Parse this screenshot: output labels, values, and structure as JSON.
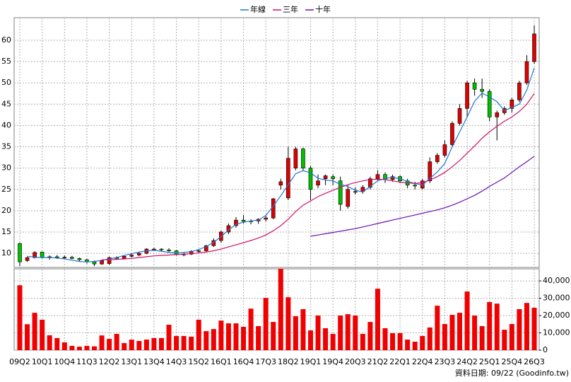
{
  "chart_data": [
    {
      "type": "candlestick",
      "categories": [
        "09Q2",
        null,
        null,
        "10Q1",
        null,
        null,
        "10Q4",
        null,
        null,
        "11Q3",
        null,
        null,
        "12Q2",
        null,
        null,
        "13Q1",
        null,
        null,
        "13Q4",
        null,
        null,
        "14Q3",
        null,
        null,
        "15Q2",
        null,
        null,
        "16Q1",
        null,
        null,
        "16Q4",
        null,
        null,
        "17Q3",
        null,
        null,
        "18Q2",
        null,
        null,
        "19Q1",
        null,
        null,
        "19Q4",
        null,
        null,
        "20Q3",
        null,
        null,
        "21Q2",
        null,
        null,
        "22Q1",
        null,
        null,
        "22Q4",
        null,
        null,
        "23Q3",
        null,
        null,
        "24Q2",
        null,
        null,
        "25Q1",
        null,
        null,
        "25Q4",
        null,
        null,
        "26Q3"
      ],
      "open": [
        12.3,
        8.3,
        9,
        10.3,
        9,
        9.2,
        9,
        9.1,
        8.8,
        8.5,
        8,
        7.5,
        7.6,
        9,
        8.8,
        9.3,
        9.6,
        10,
        11,
        11,
        10.8,
        10.6,
        9.7,
        9.8,
        10.5,
        10.6,
        11.8,
        13,
        15,
        16.5,
        17.8,
        17.5,
        17.6,
        18,
        18.3,
        26,
        23,
        30,
        34.5,
        30,
        26,
        27.5,
        28,
        27,
        21,
        24.5,
        24.5,
        25.5,
        27.5,
        28.5,
        27.3,
        28,
        27,
        26,
        25.3,
        27,
        31.5,
        33,
        35.5,
        40.5,
        44,
        50,
        48.5,
        48,
        42,
        43,
        44,
        46,
        50,
        55
      ],
      "high": [
        12.5,
        9.2,
        10.5,
        10.4,
        9.5,
        9.6,
        9.5,
        9.4,
        9,
        8.7,
        8.3,
        8.5,
        9.2,
        9.3,
        9.5,
        10,
        10.3,
        11.2,
        11.3,
        11.2,
        11.2,
        10.8,
        10.2,
        10.7,
        11,
        12,
        13.5,
        15.3,
        17,
        18.5,
        19,
        18,
        18.2,
        19,
        23,
        27.5,
        35,
        35,
        34.8,
        30.5,
        28.5,
        28.5,
        28.5,
        28,
        26,
        25.5,
        26,
        28,
        29.5,
        29,
        28.5,
        28.3,
        27.5,
        26.8,
        27.5,
        32.5,
        33.5,
        36.5,
        41,
        45,
        50.5,
        51,
        51,
        48.5,
        43.5,
        44.5,
        46.5,
        50.5,
        56.5,
        63.5
      ],
      "low": [
        7,
        8,
        8.8,
        8.8,
        8.5,
        8.7,
        8.6,
        8.6,
        8.2,
        7.6,
        7,
        7.3,
        7.3,
        8.5,
        8.6,
        9,
        9.3,
        9.8,
        10.6,
        10.4,
        10.3,
        9.5,
        9.3,
        9.6,
        10,
        10.2,
        11.5,
        12.5,
        14.5,
        16,
        17,
        16.8,
        16.9,
        17.5,
        18,
        25,
        22.5,
        29.5,
        29.5,
        22.5,
        25.3,
        26,
        26,
        20,
        20.5,
        23.8,
        24,
        25,
        27,
        26.5,
        26.8,
        26.5,
        25.3,
        25,
        25,
        26.5,
        31,
        32.5,
        35,
        40,
        42,
        47,
        46.5,
        41,
        36.5,
        42.5,
        43,
        45.5,
        49.5,
        54.5
      ],
      "close": [
        8,
        9,
        10.2,
        9,
        9.2,
        9,
        9.1,
        8.8,
        8.5,
        8,
        7.5,
        8.3,
        9,
        8.8,
        9.3,
        9.6,
        10,
        11,
        11,
        10.8,
        10.6,
        9.7,
        9.8,
        10.5,
        10.6,
        11.8,
        13,
        15,
        16.5,
        17.8,
        17.5,
        17.6,
        18,
        18.3,
        22.8,
        26.8,
        32.3,
        34.5,
        30,
        25,
        27,
        28.2,
        27.5,
        21.5,
        25,
        24.5,
        25.5,
        27.5,
        28.5,
        27.3,
        28,
        27,
        26,
        25.8,
        27,
        31.5,
        33,
        35.5,
        40.5,
        44,
        50,
        48.5,
        48,
        42,
        43,
        44,
        46,
        50,
        55,
        61.5
      ],
      "up_color": "#e00000",
      "down_color": "#00c000",
      "series": [
        {
          "name": "年線",
          "color": "#1f77d0",
          "values": [
            null,
            9.3,
            9.1,
            9.0,
            9.0,
            8.9,
            8.7,
            8.4,
            8.1,
            8.0,
            8.1,
            8.4,
            8.7,
            9.0,
            9.5,
            9.9,
            10.3,
            10.6,
            10.7,
            10.5,
            10.2,
            10.1,
            10.2,
            10.4,
            10.9,
            11.6,
            12.6,
            13.9,
            15.5,
            16.8,
            17.3,
            17.6,
            17.8,
            18.9,
            21.1,
            23.5,
            26.1,
            28.7,
            29.4,
            28.9,
            27.6,
            27.2,
            27.0,
            26.2,
            25.7,
            24.8,
            24.4,
            25.7,
            27.0,
            27.6,
            27.8,
            27.5,
            26.9,
            26.4,
            26.0,
            27.6,
            29.1,
            31.1,
            35.0,
            38.5,
            42.0,
            45.7,
            47.6,
            46.7,
            45.6,
            43.5,
            44.2,
            45.0,
            48.3,
            53.5
          ]
        },
        {
          "name": "三年",
          "color": "#d0106a",
          "values": [
            null,
            null,
            null,
            null,
            null,
            null,
            null,
            null,
            null,
            null,
            null,
            8.5,
            8.5,
            8.6,
            8.7,
            8.8,
            9.0,
            9.2,
            9.4,
            9.5,
            9.6,
            9.7,
            9.8,
            9.9,
            10.1,
            10.3,
            10.6,
            11.0,
            11.5,
            12.0,
            12.5,
            13.0,
            13.6,
            14.3,
            15.3,
            16.5,
            18.0,
            19.8,
            21.3,
            22.3,
            23.3,
            24.1,
            24.8,
            25.5,
            26.1,
            26.6,
            27.0,
            27.3,
            27.4,
            27.3,
            27.0,
            26.7,
            26.5,
            26.4,
            26.6,
            27.2,
            28.0,
            29.0,
            30.3,
            31.8,
            33.5,
            35.2,
            37.0,
            38.5,
            39.8,
            41.0,
            42.0,
            43.3,
            45.0,
            47.5
          ]
        },
        {
          "name": "十年",
          "color": "#6a10b0",
          "values": [
            null,
            null,
            null,
            null,
            null,
            null,
            null,
            null,
            null,
            null,
            null,
            null,
            null,
            null,
            null,
            null,
            null,
            null,
            null,
            null,
            null,
            null,
            null,
            null,
            null,
            null,
            null,
            null,
            null,
            null,
            null,
            null,
            null,
            null,
            null,
            null,
            null,
            null,
            null,
            14.0,
            14.3,
            14.6,
            14.9,
            15.2,
            15.5,
            15.8,
            16.2,
            16.6,
            17.0,
            17.4,
            17.8,
            18.2,
            18.6,
            19.0,
            19.4,
            19.8,
            20.2,
            20.7,
            21.3,
            22.0,
            22.8,
            23.6,
            24.6,
            25.7,
            26.7,
            27.7,
            29.0,
            30.3,
            31.5,
            32.8
          ]
        }
      ],
      "ylim": [
        6.7,
        65.3
      ],
      "yticks": [
        10,
        15,
        20,
        25,
        30,
        35,
        40,
        45,
        50,
        55,
        60
      ],
      "grid": true,
      "legend": "top"
    },
    {
      "type": "bar",
      "values": [
        37500,
        15000,
        21600,
        17600,
        8600,
        7000,
        4500,
        2500,
        2000,
        2500,
        2200,
        8500,
        6500,
        9400,
        4100,
        6100,
        5300,
        6100,
        7000,
        7000,
        14700,
        8200,
        8200,
        7800,
        17600,
        11000,
        12200,
        17100,
        15500,
        15500,
        13500,
        24000,
        13900,
        30200,
        16300,
        47000,
        30600,
        19600,
        23700,
        11400,
        20000,
        12700,
        9400,
        20000,
        20800,
        20000,
        9400,
        16300,
        35500,
        12700,
        9800,
        9800,
        6100,
        4900,
        8200,
        13100,
        25700,
        15100,
        20400,
        21600,
        33900,
        20000,
        13900,
        27800,
        26900,
        11800,
        15100,
        23700,
        27300,
        24500
      ],
      "color": "#f00000",
      "ylim": [
        0,
        47000
      ],
      "yticks": [
        0,
        {
          "value": 10000,
          "label": "10,000"
        },
        {
          "value": 20000,
          "label": "20,000"
        },
        {
          "value": 30000,
          "label": "30,000"
        },
        {
          "value": 40000,
          "label": "40,000"
        }
      ],
      "grid": true,
      "caption": "資料日期: 09/22 (Goodinfo.tw)"
    }
  ]
}
